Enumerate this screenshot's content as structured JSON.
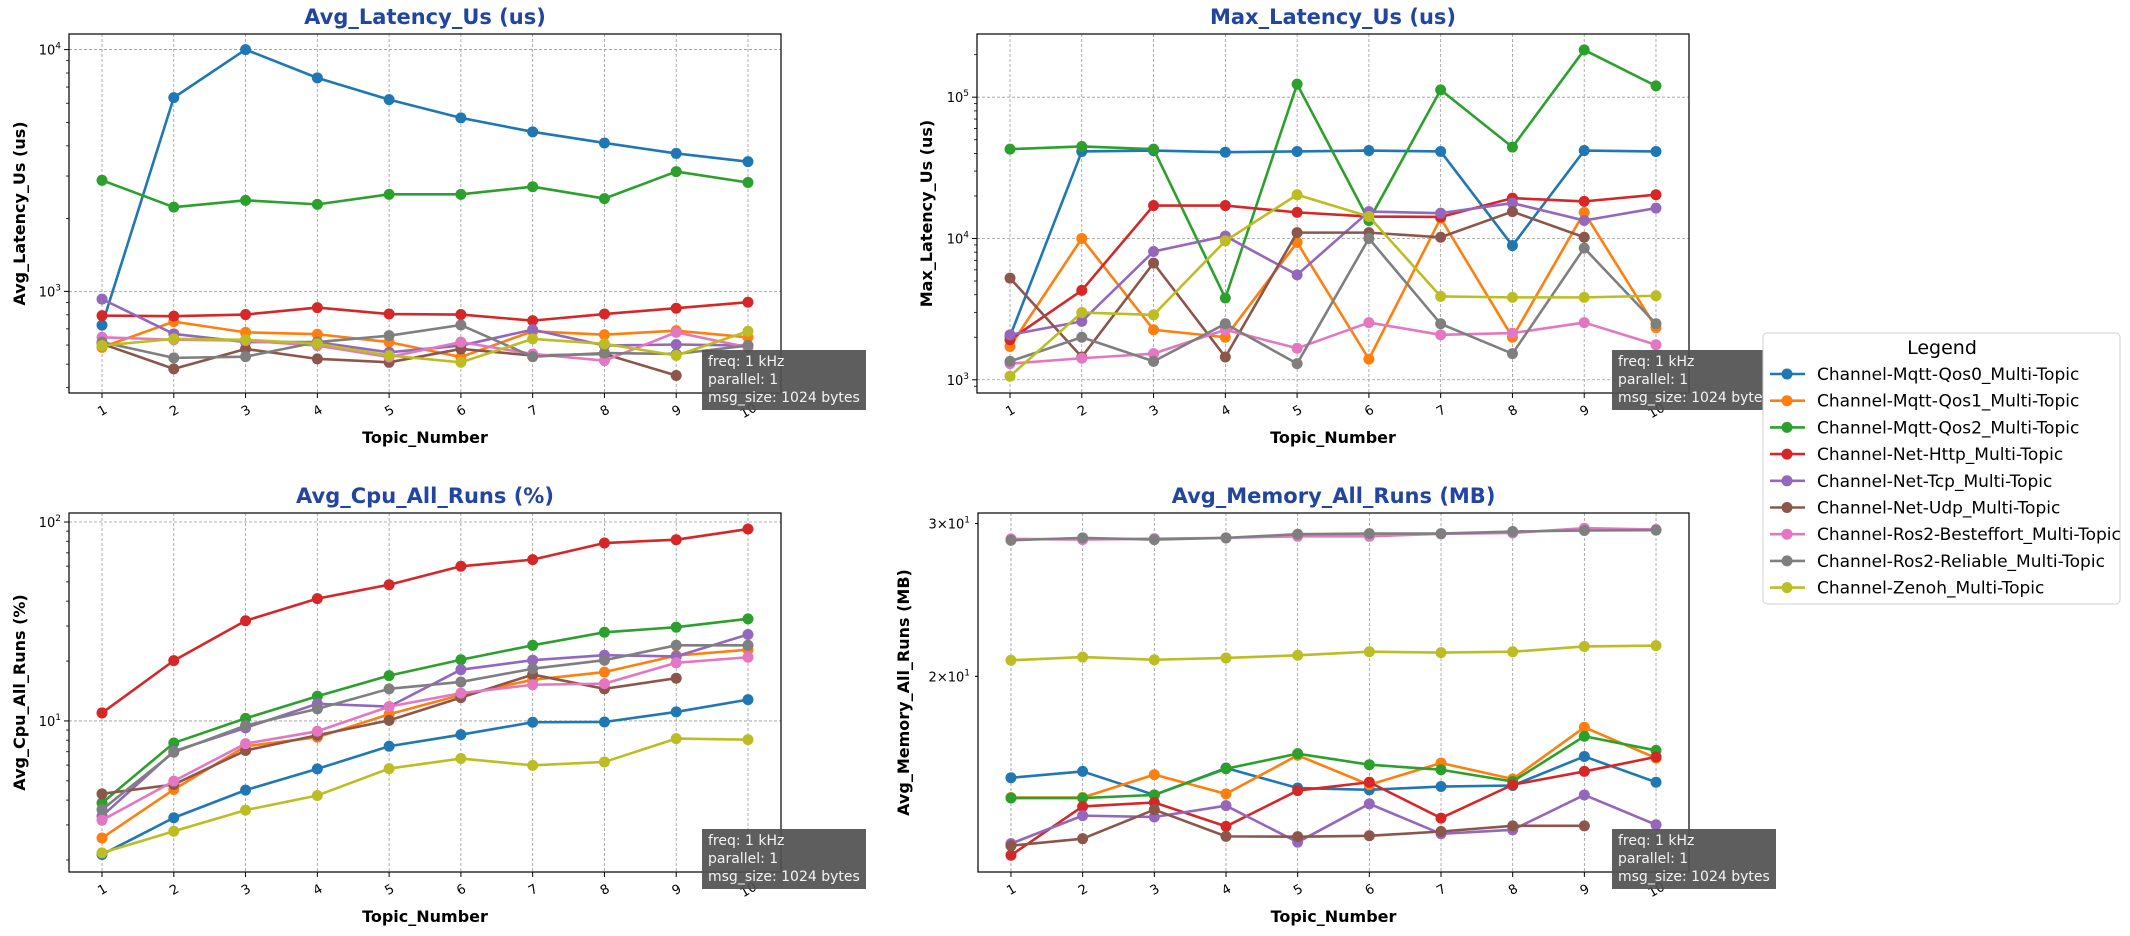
{
  "annotation": [
    "freq: 1 kHz",
    "parallel: 1",
    "msg_size: 1024 bytes"
  ],
  "legend": {
    "title": "Legend",
    "placement": "right",
    "entries": [
      {
        "name": "Channel-Mqtt-Qos0_Multi-Topic",
        "color": "#1f77b4"
      },
      {
        "name": "Channel-Mqtt-Qos1_Multi-Topic",
        "color": "#ff7f0e"
      },
      {
        "name": "Channel-Mqtt-Qos2_Multi-Topic",
        "color": "#2ca02c"
      },
      {
        "name": "Channel-Net-Http_Multi-Topic",
        "color": "#d62728"
      },
      {
        "name": "Channel-Net-Tcp_Multi-Topic",
        "color": "#9467bd"
      },
      {
        "name": "Channel-Net-Udp_Multi-Topic",
        "color": "#8c564b"
      },
      {
        "name": "Channel-Ros2-Besteffort_Multi-Topic",
        "color": "#e377c2"
      },
      {
        "name": "Channel-Ros2-Reliable_Multi-Topic",
        "color": "#7f7f7f"
      },
      {
        "name": "Channel-Zenoh_Multi-Topic",
        "color": "#bcbd22"
      }
    ]
  },
  "chart_data": [
    {
      "type": "line",
      "title": "Avg_Latency_Us  (us)",
      "xlabel": "Topic_Number",
      "ylabel": "Avg_Latency_Us (us)",
      "yscale": "log",
      "grid": true,
      "x": [
        1,
        2,
        3,
        4,
        5,
        6,
        7,
        8,
        9,
        10
      ],
      "xlim": [
        0.54,
        10.46
      ],
      "ylim": [
        380,
        11600
      ],
      "yticks": [
        {
          "value": 1000,
          "base": "10",
          "exp": "3"
        },
        {
          "value": 10000,
          "base": "10",
          "exp": "4"
        }
      ],
      "series": [
        {
          "name": "Channel-Mqtt-Qos0_Multi-Topic",
          "values": [
            725,
            6330,
            10000,
            7640,
            6210,
            5220,
            4570,
            4110,
            3720,
            3440
          ]
        },
        {
          "name": "Channel-Mqtt-Qos1_Multi-Topic",
          "values": [
            587,
            750,
            677,
            665,
            617,
            535,
            684,
            662,
            688,
            646
          ]
        },
        {
          "name": "Channel-Mqtt-Qos2_Multi-Topic",
          "values": [
            2880,
            2230,
            2380,
            2290,
            2520,
            2520,
            2710,
            2420,
            3130,
            2820
          ]
        },
        {
          "name": "Channel-Net-Http_Multi-Topic",
          "values": [
            794,
            790,
            802,
            857,
            806,
            802,
            757,
            806,
            852,
            902
          ]
        },
        {
          "name": "Channel-Net-Tcp_Multi-Topic",
          "values": [
            929,
            667,
            617,
            617,
            560,
            597,
            695,
            597,
            603,
            597
          ]
        },
        {
          "name": "Channel-Net-Udp_Multi-Topic",
          "values": [
            607,
            478,
            578,
            526,
            509,
            578,
            543,
            551,
            449,
            null
          ]
        },
        {
          "name": "Channel-Ros2-Besteffort_Multi-Topic",
          "values": [
            646,
            631,
            626,
            597,
            535,
            617,
            551,
            517,
            677,
            587
          ]
        },
        {
          "name": "Channel-Ros2-Reliable_Multi-Topic",
          "values": [
            617,
            531,
            537,
            617,
            656,
            726,
            537,
            556,
            551,
            597
          ]
        },
        {
          "name": "Channel-Zenoh_Multi-Topic",
          "values": [
            597,
            636,
            631,
            607,
            543,
            509,
            636,
            607,
            543,
            684
          ]
        }
      ]
    },
    {
      "type": "line",
      "title": "Max_Latency_Us  (us)",
      "xlabel": "Topic_Number",
      "ylabel": "Max_Latency_Us (us)",
      "yscale": "log",
      "grid": true,
      "x": [
        1,
        2,
        3,
        4,
        5,
        6,
        7,
        8,
        9,
        10
      ],
      "xlim": [
        0.54,
        10.46
      ],
      "ylim": [
        806,
        280000
      ],
      "yticks": [
        {
          "value": 1000,
          "base": "10",
          "exp": "3"
        },
        {
          "value": 10000,
          "base": "10",
          "exp": "4"
        },
        {
          "value": 100000,
          "base": "10",
          "exp": "5"
        }
      ],
      "series": [
        {
          "name": "Channel-Mqtt-Qos0_Multi-Topic",
          "values": [
            2030,
            41300,
            41900,
            40800,
            41300,
            41900,
            41300,
            8910,
            41900,
            41300
          ]
        },
        {
          "name": "Channel-Mqtt-Qos1_Multi-Topic",
          "values": [
            1720,
            10000,
            2260,
            2000,
            9370,
            1400,
            13900,
            2000,
            15300,
            2340
          ]
        },
        {
          "name": "Channel-Mqtt-Qos2_Multi-Topic",
          "values": [
            42900,
            44800,
            42900,
            3790,
            123600,
            13400,
            112700,
            44300,
            216000,
            120200
          ]
        },
        {
          "name": "Channel-Net-Http_Multi-Topic",
          "values": [
            1920,
            4290,
            17100,
            17100,
            15300,
            14300,
            14200,
            19300,
            18300,
            20400
          ]
        },
        {
          "name": "Channel-Net-Tcp_Multi-Topic",
          "values": [
            2080,
            2590,
            8090,
            10400,
            5530,
            15500,
            15100,
            17800,
            13400,
            16400
          ]
        },
        {
          "name": "Channel-Net-Udp_Multi-Topic",
          "values": [
            5240,
            1450,
            6690,
            1450,
            11000,
            11000,
            10200,
            15500,
            10200,
            null
          ]
        },
        {
          "name": "Channel-Ros2-Besteffort_Multi-Topic",
          "values": [
            1300,
            1420,
            1530,
            2260,
            1670,
            2540,
            2080,
            2140,
            2540,
            1770
          ]
        },
        {
          "name": "Channel-Ros2-Reliable_Multi-Topic",
          "values": [
            1350,
            2000,
            1350,
            2490,
            1300,
            10000,
            2490,
            1530,
            8550,
            2490
          ]
        },
        {
          "name": "Channel-Zenoh_Multi-Topic",
          "values": [
            1060,
            2990,
            2880,
            9610,
            20400,
            14300,
            3890,
            3830,
            3830,
            3930
          ]
        }
      ]
    },
    {
      "type": "line",
      "title": "Avg_Cpu_All_Runs  (%)",
      "xlabel": "Topic_Number",
      "ylabel": "Avg_Cpu_All_Runs (%)",
      "yscale": "log",
      "grid": true,
      "x": [
        1,
        2,
        3,
        4,
        5,
        6,
        7,
        8,
        9,
        10
      ],
      "xlim": [
        0.54,
        10.46
      ],
      "ylim": [
        1.74,
        111
      ],
      "yticks": [
        {
          "value": 10,
          "base": "10",
          "exp": "1"
        },
        {
          "value": 100,
          "base": "10",
          "exp": "2"
        }
      ],
      "series": [
        {
          "name": "Channel-Mqtt-Qos0_Multi-Topic",
          "values": [
            2.13,
            3.26,
            4.49,
            5.74,
            7.46,
            8.53,
            9.85,
            9.88,
            11.1,
            12.8
          ]
        },
        {
          "name": "Channel-Mqtt-Qos1_Multi-Topic",
          "values": [
            2.58,
            4.52,
            7.46,
            8.28,
            10.8,
            13.5,
            16.1,
            17.6,
            21.3,
            22.8
          ]
        },
        {
          "name": "Channel-Mqtt-Qos2_Multi-Topic",
          "values": [
            3.87,
            7.75,
            10.3,
            13.3,
            16.9,
            20.3,
            24.0,
            27.9,
            29.6,
            32.6
          ]
        },
        {
          "name": "Channel-Net-Http_Multi-Topic",
          "values": [
            10.97,
            20.1,
            31.9,
            41.2,
            48.4,
            59.9,
            64.7,
            78.4,
            81.5,
            92.2
          ]
        },
        {
          "name": "Channel-Net-Tcp_Multi-Topic",
          "values": [
            3.32,
            7.04,
            9.23,
            12.2,
            11.8,
            18.1,
            20.2,
            21.4,
            21.1,
            27.2
          ]
        },
        {
          "name": "Channel-Net-Udp_Multi-Topic",
          "values": [
            4.3,
            4.79,
            7.1,
            8.47,
            10.07,
            13.1,
            17.1,
            14.5,
            16.4,
            null
          ]
        },
        {
          "name": "Channel-Ros2-Besteffort_Multi-Topic",
          "values": [
            3.17,
            4.98,
            7.69,
            8.87,
            11.8,
            13.8,
            15.2,
            15.4,
            19.6,
            20.9
          ]
        },
        {
          "name": "Channel-Ros2-Reliable_Multi-Topic",
          "values": [
            3.58,
            6.96,
            9.48,
            11.5,
            14.5,
            15.7,
            18.3,
            20.2,
            24.0,
            24.0
          ]
        },
        {
          "name": "Channel-Zenoh_Multi-Topic",
          "values": [
            2.17,
            2.79,
            3.56,
            4.22,
            5.76,
            6.47,
            5.98,
            6.22,
            8.15,
            8.05
          ]
        }
      ]
    },
    {
      "type": "line",
      "title": "Avg_Memory_All_Runs  (MB)",
      "xlabel": "Topic_Number",
      "ylabel": "Avg_Memory_All_Runs (MB)",
      "yscale": "log",
      "grid": true,
      "x": [
        1,
        2,
        3,
        4,
        5,
        6,
        7,
        8,
        9,
        10
      ],
      "xlim": [
        0.54,
        10.46
      ],
      "ylim": [
        11.9,
        30.85
      ],
      "yticks": [
        {
          "value": 20,
          "base": "2×10",
          "exp": "1"
        },
        {
          "value": 30,
          "base": "3×10",
          "exp": "1"
        }
      ],
      "series": [
        {
          "name": "Channel-Mqtt-Qos0_Multi-Topic",
          "values": [
            15.28,
            15.54,
            14.6,
            15.68,
            14.87,
            14.8,
            14.93,
            14.97,
            16.17,
            15.1
          ]
        },
        {
          "name": "Channel-Mqtt-Qos1_Multi-Topic",
          "values": [
            14.5,
            14.5,
            15.41,
            14.64,
            16.22,
            15.0,
            15.89,
            15.23,
            17.47,
            16.1
          ]
        },
        {
          "name": "Channel-Mqtt-Qos2_Multi-Topic",
          "values": [
            14.48,
            14.48,
            14.6,
            15.65,
            16.29,
            15.82,
            15.61,
            15.13,
            17.06,
            16.43
          ]
        },
        {
          "name": "Channel-Net-Http_Multi-Topic",
          "values": [
            12.44,
            14.16,
            14.31,
            13.43,
            14.77,
            15.1,
            13.73,
            15.0,
            15.54,
            16.15
          ]
        },
        {
          "name": "Channel-Net-Tcp_Multi-Topic",
          "values": [
            12.83,
            13.82,
            13.77,
            14.19,
            12.88,
            14.26,
            13.17,
            13.31,
            14.6,
            13.49
          ]
        },
        {
          "name": "Channel-Net-Udp_Multi-Topic",
          "values": [
            12.76,
            13.0,
            14.04,
            13.08,
            13.07,
            13.1,
            13.25,
            13.45,
            13.45,
            null
          ]
        },
        {
          "name": "Channel-Ros2-Besteffort_Multi-Topic",
          "values": [
            28.8,
            28.75,
            28.82,
            28.88,
            29.0,
            29.0,
            29.19,
            29.26,
            29.63,
            29.53
          ]
        },
        {
          "name": "Channel-Ros2-Reliable_Multi-Topic",
          "values": [
            28.7,
            28.88,
            28.75,
            28.88,
            29.16,
            29.21,
            29.21,
            29.37,
            29.45,
            29.48
          ]
        },
        {
          "name": "Channel-Zenoh_Multi-Topic",
          "values": [
            20.87,
            21.05,
            20.9,
            21.0,
            21.15,
            21.35,
            21.3,
            21.35,
            21.65,
            21.7
          ]
        }
      ]
    }
  ]
}
